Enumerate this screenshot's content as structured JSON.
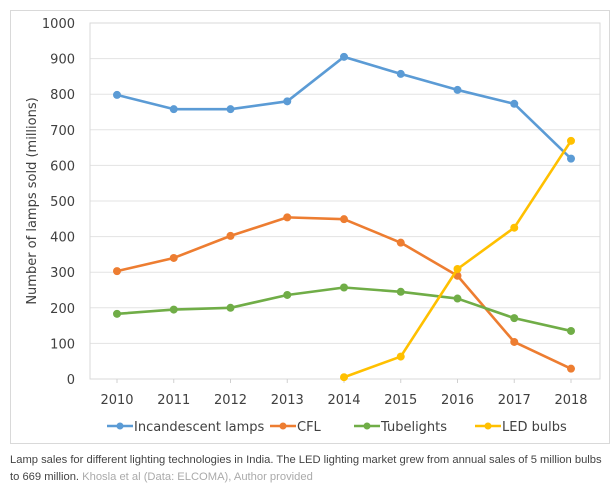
{
  "chart_data": {
    "type": "line",
    "title": "",
    "xlabel": "",
    "ylabel": "Number of lamps sold (millions)",
    "ylim": [
      0,
      1000
    ],
    "yticks": [
      0,
      100,
      200,
      300,
      400,
      500,
      600,
      700,
      800,
      900,
      1000
    ],
    "categories": [
      "2010",
      "2011",
      "2012",
      "2013",
      "2014",
      "2015",
      "2016",
      "2017",
      "2018"
    ],
    "grid": true,
    "legend": "bottom",
    "series": [
      {
        "name": "Incandescent lamps",
        "color": "#5b9bd5",
        "values": [
          798,
          758,
          758,
          780,
          905,
          857,
          812,
          773,
          619
        ]
      },
      {
        "name": "CFL",
        "color": "#ed7d31",
        "values": [
          303,
          340,
          402,
          454,
          449,
          383,
          290,
          104,
          29
        ]
      },
      {
        "name": "Tubelights",
        "color": "#70ad47",
        "values": [
          183,
          195,
          200,
          236,
          257,
          245,
          226,
          171,
          135
        ]
      },
      {
        "name": "LED bulbs",
        "color": "#ffc000",
        "values": [
          null,
          null,
          null,
          null,
          5,
          63,
          309,
          425,
          669
        ]
      }
    ]
  },
  "caption": {
    "text": "Lamp sales for different lighting technologies in India. The LED lighting market grew from annual sales of 5 million bulbs to 669 million.",
    "credit": "Khosla et al (Data: ELCOMA), Author provided"
  }
}
